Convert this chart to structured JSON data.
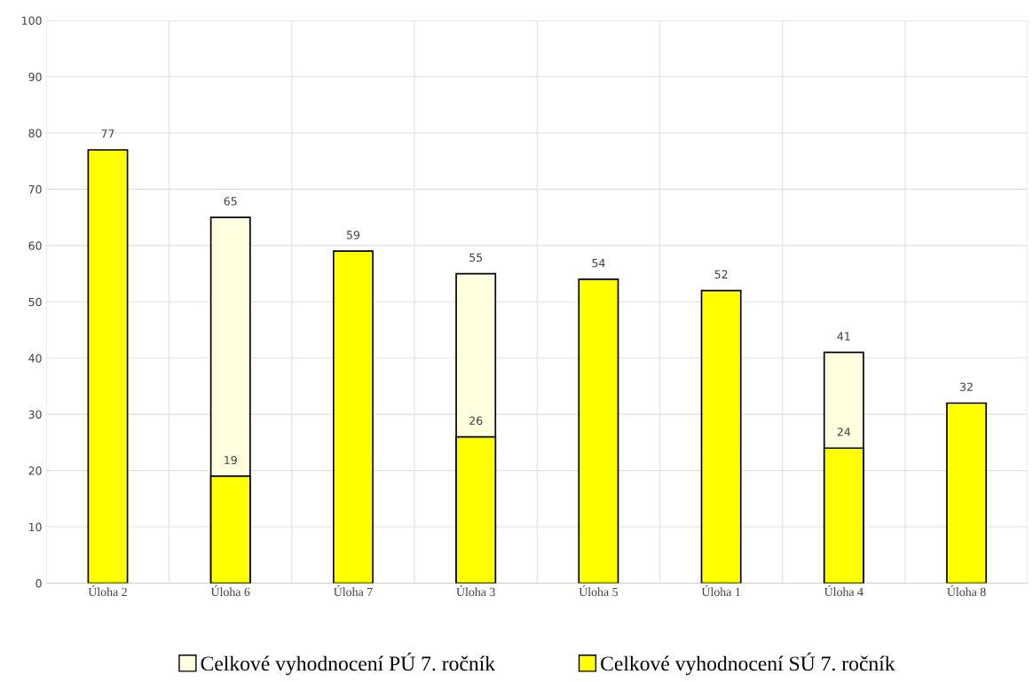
{
  "chart_data": {
    "type": "bar",
    "categories": [
      "Úloha 2",
      "Úloha 6",
      "Úloha 7",
      "Úloha 3",
      "Úloha 5",
      "Úloha 1",
      "Úloha 4",
      "Úloha 8"
    ],
    "series": [
      {
        "name": "Celkové vyhodnocení PÚ 7. ročník",
        "color": "#ffffe0",
        "values": [
          null,
          65,
          null,
          55,
          null,
          null,
          41,
          null
        ]
      },
      {
        "name": "Celkové vyhodnocení SÚ 7. ročník",
        "color": "#ffff00",
        "values": [
          77,
          19,
          59,
          26,
          54,
          52,
          24,
          32
        ]
      }
    ],
    "ylim": [
      0,
      100
    ],
    "yticks": [
      0,
      10,
      20,
      30,
      40,
      50,
      60,
      70,
      80,
      90,
      100
    ],
    "grid": true,
    "legend": "bottom",
    "data_labels": true
  }
}
